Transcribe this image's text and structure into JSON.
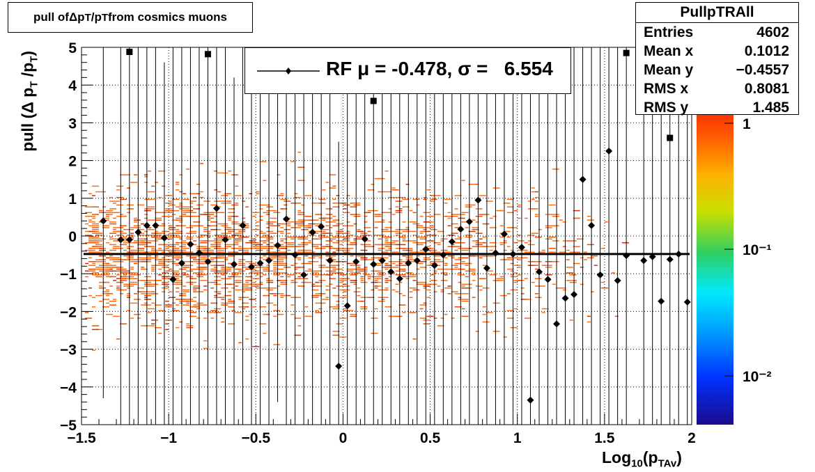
{
  "title_parts": {
    "pre": "pull of ",
    "delta": "Δ",
    "p1": " p",
    "s1": "T",
    "sl": "/p",
    "s2": "T",
    "post": " from cosmics muons"
  },
  "stats": {
    "name": "PullpTRAll",
    "rows": [
      {
        "key": "Entries",
        "value": "4602"
      },
      {
        "key": "Mean x",
        "value": "0.1012"
      },
      {
        "key": "Mean y",
        "value": "−0.4557"
      },
      {
        "key": "RMS x",
        "value": "0.8081"
      },
      {
        "key": "RMS y",
        "value": "1.485"
      }
    ]
  },
  "legend": {
    "text": "RF μ = -0.478, σ =   6.554"
  },
  "ylabel_parts": {
    "a": "pull (Δ p",
    "s1": "T",
    "b": " /p",
    "s2": "T",
    "c": ")"
  },
  "xlabel_parts": {
    "a": "Log",
    "s1": "10",
    "b": "(p",
    "s2": "TAv",
    "c": ")"
  },
  "colors": {
    "entries": "#ff5a00",
    "markers": "#000000",
    "fit_line": "#000000"
  },
  "chart_data": {
    "type": "scatter",
    "xlim": [
      -1.5,
      2
    ],
    "ylim": [
      -5,
      5
    ],
    "x_ticks": [
      "−1.5",
      "−1",
      "−0.5",
      "0",
      "0.5",
      "1",
      "1.5",
      "2"
    ],
    "y_ticks": [
      "−5",
      "−4",
      "−3",
      "−2",
      "−1",
      "0",
      "1",
      "2",
      "3",
      "4",
      "5"
    ],
    "x_tick_values": [
      -1.5,
      -1,
      -0.5,
      0,
      0.5,
      1,
      1.5,
      2
    ],
    "y_tick_values": [
      -5,
      -4,
      -3,
      -2,
      -1,
      0,
      1,
      2,
      3,
      4,
      5
    ],
    "grid": true,
    "colz_scale": {
      "log": true,
      "labels": [
        "1",
        "10⁻¹",
        "10⁻²"
      ],
      "label_values": [
        1,
        0.1,
        0.01
      ]
    },
    "fit_constant": -0.478,
    "profile_diamonds": [
      [
        -1.375,
        0.4
      ],
      [
        -1.275,
        -0.1
      ],
      [
        -1.225,
        -0.1
      ],
      [
        -1.175,
        0.1
      ],
      [
        -1.125,
        0.28
      ],
      [
        -1.075,
        0.28
      ],
      [
        -1.025,
        -0.05
      ],
      [
        -0.975,
        -1.15
      ],
      [
        -0.925,
        -0.72
      ],
      [
        -0.875,
        -0.22
      ],
      [
        -0.825,
        -0.45
      ],
      [
        -0.775,
        -0.68
      ],
      [
        -0.725,
        0.73
      ],
      [
        -0.675,
        -0.1
      ],
      [
        -0.625,
        -0.75
      ],
      [
        -0.575,
        0.28
      ],
      [
        -0.525,
        -0.82
      ],
      [
        -0.475,
        -0.72
      ],
      [
        -0.425,
        -0.65
      ],
      [
        -0.375,
        -0.25
      ],
      [
        -0.325,
        0.45
      ],
      [
        -0.275,
        -0.5
      ],
      [
        -0.225,
        -1.03
      ],
      [
        -0.175,
        0.1
      ],
      [
        -0.125,
        0.25
      ],
      [
        -0.075,
        -0.65
      ],
      [
        -0.025,
        -3.45
      ],
      [
        0.025,
        -1.85
      ],
      [
        0.075,
        -0.68
      ],
      [
        0.125,
        -0.08
      ],
      [
        0.175,
        -0.75
      ],
      [
        0.225,
        -0.65
      ],
      [
        0.275,
        -0.95
      ],
      [
        0.325,
        -1.13
      ],
      [
        0.375,
        -0.72
      ],
      [
        0.425,
        -0.65
      ],
      [
        0.475,
        -0.35
      ],
      [
        0.525,
        -0.78
      ],
      [
        0.575,
        -0.5
      ],
      [
        0.625,
        -0.15
      ],
      [
        0.675,
        0.18
      ],
      [
        0.725,
        0.38
      ],
      [
        0.775,
        0.95
      ],
      [
        0.825,
        -0.85
      ],
      [
        0.875,
        -0.45
      ],
      [
        0.925,
        0.05
      ],
      [
        0.975,
        -0.48
      ],
      [
        1.025,
        -0.3
      ],
      [
        1.075,
        -4.35
      ],
      [
        1.125,
        -0.95
      ],
      [
        1.175,
        -1.15
      ],
      [
        1.225,
        -2.33
      ],
      [
        1.275,
        -1.65
      ],
      [
        1.325,
        -1.55
      ],
      [
        1.375,
        1.5
      ],
      [
        1.425,
        0.28
      ],
      [
        1.475,
        -1.03
      ],
      [
        1.525,
        2.25
      ],
      [
        1.575,
        -1.18
      ],
      [
        1.625,
        -0.52
      ],
      [
        1.725,
        -0.65
      ],
      [
        1.775,
        -0.55
      ],
      [
        1.825,
        -1.73
      ],
      [
        1.875,
        -0.62
      ],
      [
        1.925,
        -0.48
      ],
      [
        1.975,
        -1.75
      ]
    ],
    "profile_squares": [
      [
        -1.225,
        4.88
      ],
      [
        -0.775,
        4.82
      ],
      [
        0.175,
        3.58
      ],
      [
        1.625,
        4.85
      ],
      [
        1.875,
        2.6
      ]
    ],
    "error_bars": [
      [
        -1.375,
        -4.3,
        5
      ],
      [
        -1.275,
        -5,
        5
      ],
      [
        -1.225,
        -5,
        5
      ],
      [
        -1.175,
        -5,
        5
      ],
      [
        -1.125,
        -5,
        5
      ],
      [
        -1.075,
        -5,
        5
      ],
      [
        -1.025,
        -5,
        4.6
      ],
      [
        -0.975,
        -5,
        5
      ],
      [
        -0.925,
        -5,
        5
      ],
      [
        -0.875,
        -5,
        5
      ],
      [
        -0.825,
        -5,
        5
      ],
      [
        -0.775,
        -5,
        5
      ],
      [
        -0.725,
        -5,
        5
      ],
      [
        -0.675,
        -5,
        5
      ],
      [
        -0.625,
        -5,
        4.2
      ],
      [
        -0.575,
        -5,
        5
      ],
      [
        -0.525,
        -5,
        5
      ],
      [
        -0.475,
        -5,
        5
      ],
      [
        -0.425,
        -5,
        5
      ],
      [
        -0.375,
        -4.4,
        5
      ],
      [
        -0.325,
        -5,
        5
      ],
      [
        -0.275,
        -5,
        5
      ],
      [
        -0.225,
        -5,
        5
      ],
      [
        -0.175,
        -5,
        5
      ],
      [
        -0.125,
        -5,
        5
      ],
      [
        -0.075,
        -5,
        5
      ],
      [
        -0.025,
        -5,
        2.5
      ],
      [
        0.025,
        -5,
        5
      ],
      [
        0.075,
        -5,
        5
      ],
      [
        0.125,
        -5,
        5
      ],
      [
        0.175,
        -5,
        5
      ],
      [
        0.225,
        -5,
        5
      ],
      [
        0.275,
        -5,
        5
      ],
      [
        0.325,
        -5,
        5
      ],
      [
        0.375,
        -5,
        5
      ],
      [
        0.425,
        -5,
        5
      ],
      [
        0.475,
        -5,
        5
      ],
      [
        0.525,
        -5,
        5
      ],
      [
        0.575,
        -5,
        5
      ],
      [
        0.625,
        -5,
        5
      ],
      [
        0.675,
        -5,
        5
      ],
      [
        0.725,
        -5,
        5
      ],
      [
        0.775,
        -5,
        5
      ],
      [
        0.825,
        -5,
        5
      ],
      [
        0.875,
        -5,
        5
      ],
      [
        0.925,
        -5,
        5
      ],
      [
        0.975,
        -5,
        5
      ],
      [
        1.025,
        -5,
        5
      ],
      [
        1.075,
        -5,
        5
      ],
      [
        1.125,
        -5,
        5
      ],
      [
        1.175,
        -5,
        5
      ],
      [
        1.225,
        -5,
        5
      ],
      [
        1.275,
        -5,
        5
      ],
      [
        1.325,
        -5,
        5
      ],
      [
        1.375,
        -5,
        5
      ],
      [
        1.425,
        -5,
        5
      ],
      [
        1.475,
        -5,
        5
      ],
      [
        1.525,
        -5,
        5
      ],
      [
        1.575,
        -5,
        5
      ],
      [
        1.625,
        -5,
        5
      ],
      [
        1.725,
        -5,
        5
      ],
      [
        1.775,
        -5,
        5
      ],
      [
        1.825,
        -5,
        5
      ],
      [
        1.875,
        -5,
        5
      ],
      [
        1.925,
        -5,
        5
      ],
      [
        1.975,
        -5,
        5
      ]
    ]
  }
}
